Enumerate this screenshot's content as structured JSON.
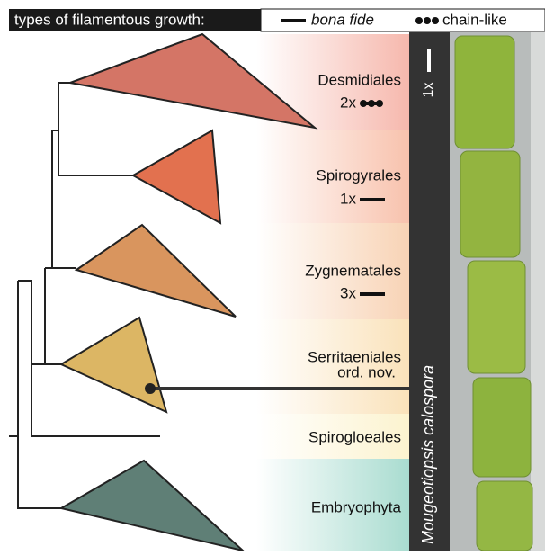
{
  "legend": {
    "title": "types of filamentous growth:",
    "items": [
      "bona fide",
      "chain-like"
    ]
  },
  "clades": [
    {
      "name": "Desmidiales",
      "count": "2x"
    },
    {
      "name": "Spirogyrales",
      "count": "1x"
    },
    {
      "name": "Zygnematales",
      "count": "3x"
    },
    {
      "name": "Serritaeniales",
      "note": "ord. nov."
    },
    {
      "name": "Spirogloeales"
    },
    {
      "name": "Embryophyta"
    }
  ],
  "species": {
    "name": "Mougeotiopsis calospora",
    "count": "1x"
  }
}
